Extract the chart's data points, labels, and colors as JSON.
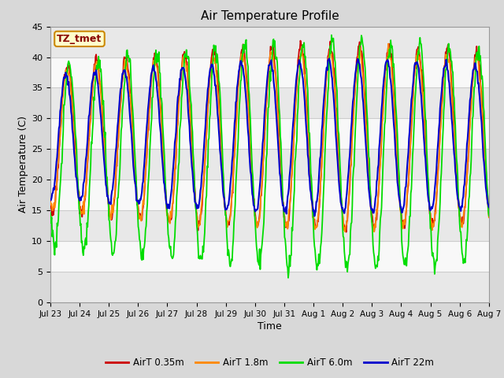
{
  "title": "Air Temperature Profile",
  "xlabel": "Time",
  "ylabel": "Air Temperature (C)",
  "ylim": [
    0,
    45
  ],
  "yticks": [
    0,
    5,
    10,
    15,
    20,
    25,
    30,
    35,
    40,
    45
  ],
  "x_labels": [
    "Jul 23",
    "Jul 24",
    "Jul 25",
    "Jul 26",
    "Jul 27",
    "Jul 28",
    "Jul 29",
    "Jul 30",
    "Jul 31",
    "Aug 1",
    "Aug 2",
    "Aug 3",
    "Aug 4",
    "Aug 5",
    "Aug 6",
    "Aug 7"
  ],
  "annotation_text": "TZ_tmet",
  "colors": {
    "AirT 0.35m": "#cc0000",
    "AirT 1.8m": "#ff8800",
    "AirT 6.0m": "#00dd00",
    "AirT 22m": "#0000cc"
  },
  "fig_bg_color": "#d8d8d8",
  "plot_bg_color": "#f0f0f0",
  "band_colors": [
    "#e8e8e8",
    "#f8f8f8"
  ],
  "grid_color": "#cccccc",
  "n_points": 720,
  "seed": 12
}
